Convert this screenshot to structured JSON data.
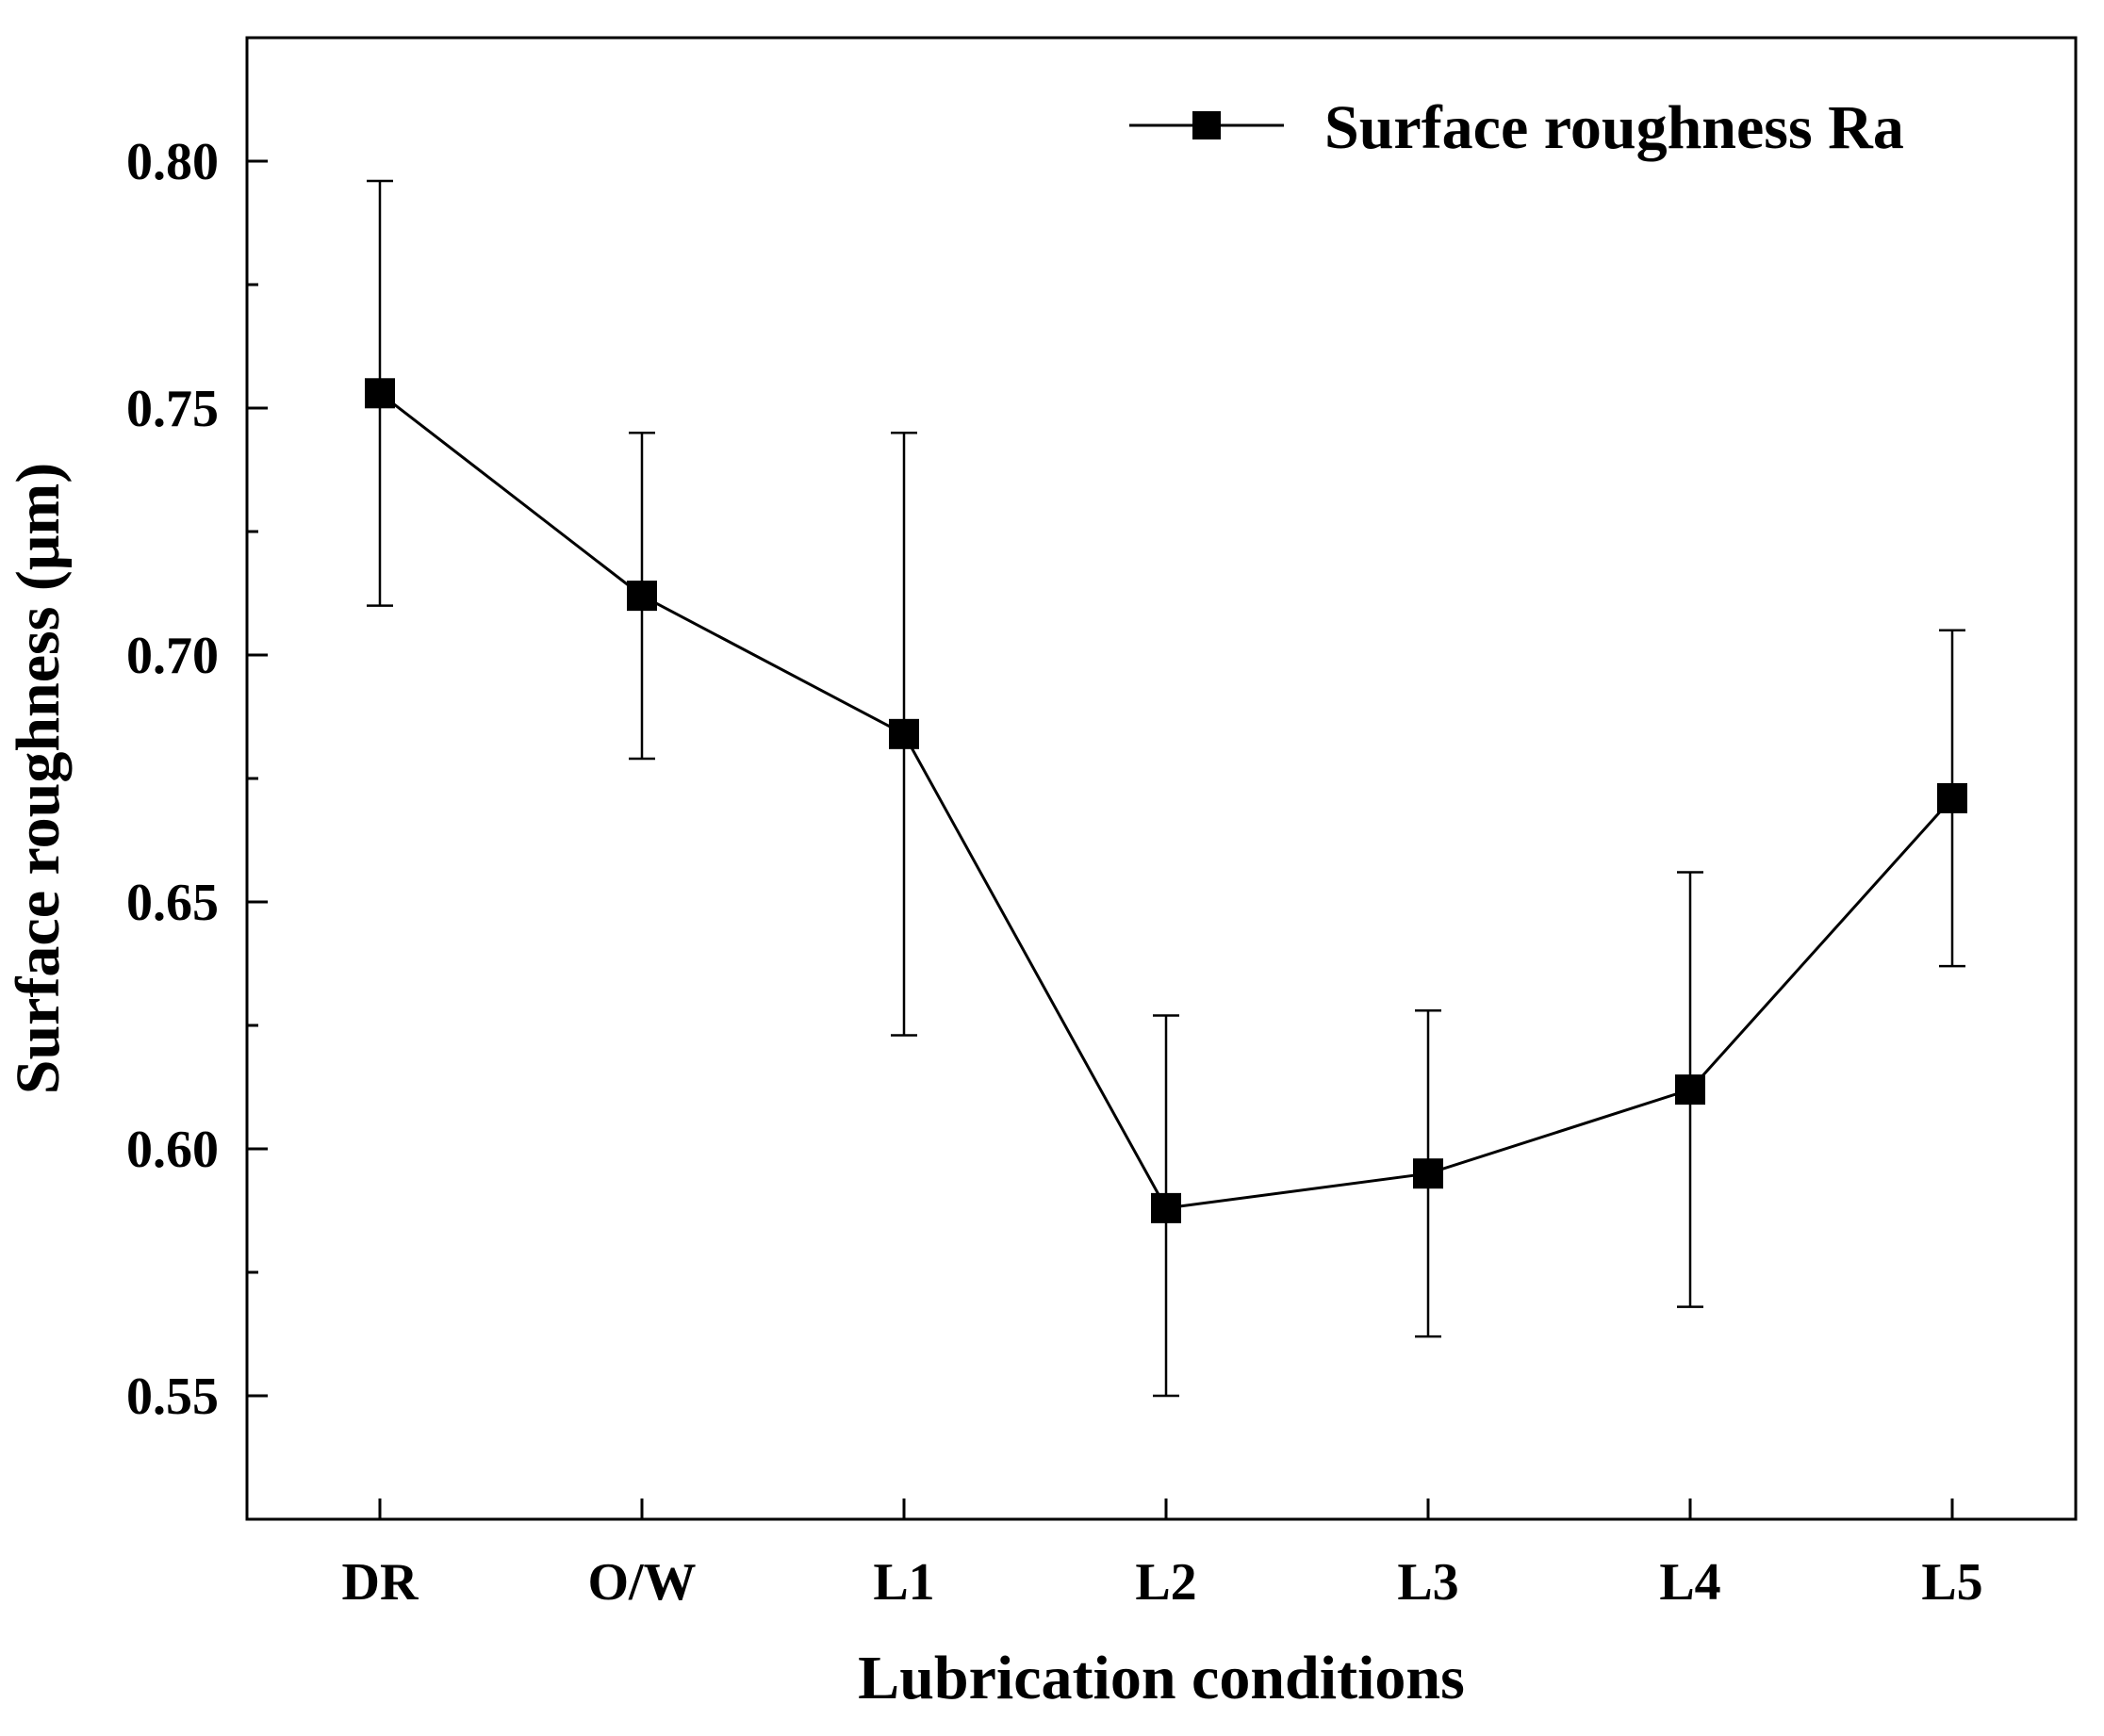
{
  "chart_data": {
    "type": "line",
    "title": "",
    "xlabel": "Lubrication conditions",
    "ylabel": "Surface roughness (μm)",
    "categories": [
      "DR",
      "O/W",
      "L1",
      "L2",
      "L3",
      "L4",
      "L5"
    ],
    "ylim": [
      0.525,
      0.825
    ],
    "yticks": [
      0.55,
      0.6,
      0.65,
      0.7,
      0.75,
      0.8
    ],
    "ytick_labels": [
      "0.55",
      "0.60",
      "0.65",
      "0.70",
      "0.75",
      "0.80"
    ],
    "series": [
      {
        "name": "Surface roughness Ra",
        "values": [
          0.753,
          0.712,
          0.684,
          0.588,
          0.595,
          0.612,
          0.671
        ],
        "error_low": [
          0.71,
          0.679,
          0.623,
          0.55,
          0.562,
          0.568,
          0.637
        ],
        "error_high": [
          0.796,
          0.745,
          0.745,
          0.627,
          0.628,
          0.656,
          0.705
        ],
        "color": "#000000",
        "marker": "square"
      }
    ],
    "legend": {
      "position": "top-right"
    },
    "grid": false
  }
}
